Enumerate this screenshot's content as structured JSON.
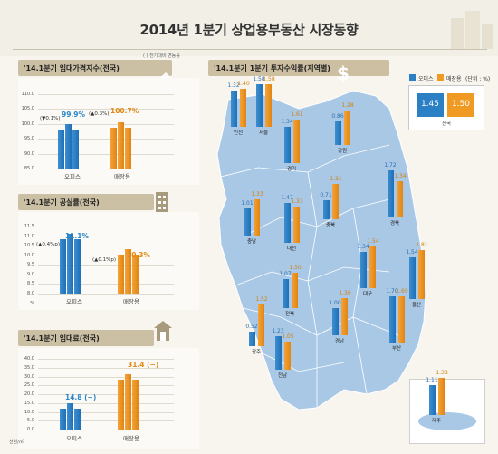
{
  "title": "2014년 1분기 상업용부동산 시장동향",
  "note": "(    ) 전기대비 변동률",
  "rent_index": {
    "heading": "'14.1분기 임대가격지수(전국)",
    "y_ticks": [
      "110.0",
      "105.0",
      "100.0",
      "95.0",
      "90.0",
      "85.0"
    ],
    "categories": [
      "오피스",
      "매장용"
    ],
    "values": [
      "99.9%",
      "100.7%"
    ],
    "changes": [
      "(▼0.1%)",
      "(▲0.3%)"
    ]
  },
  "vacancy": {
    "heading": "'14.1분기 공실률(전국)",
    "y_ticks": [
      "11.5",
      "11.0",
      "10.5",
      "10.0",
      "9.5",
      "9.0",
      "8.5",
      "8.0"
    ],
    "unit": "%",
    "categories": [
      "오피스",
      "매장용"
    ],
    "values": [
      "11.1%",
      "10.3%"
    ],
    "changes": [
      "(▲0.4%p)",
      "(▲0.1%p)"
    ]
  },
  "rent": {
    "heading": "'14.1분기 임대료(전국)",
    "y_ticks": [
      "40.0",
      "35.0",
      "30.0",
      "25.0",
      "20.0",
      "15.0",
      "10.0",
      "5.0",
      "0.0"
    ],
    "unit": "천원/㎡",
    "categories": [
      "오피스",
      "매장용"
    ],
    "values": [
      "14.8 (−)",
      "31.4 (−)"
    ]
  },
  "returns": {
    "heading": "'14.1분기 1분기 투자수익률(지역별)",
    "legend_office": "오피스",
    "legend_retail": "매장용",
    "legend_unit": "(단위 : %)",
    "national_office": "1.45",
    "national_retail": "1.50",
    "national_label": "전국",
    "colors": {
      "office": "#2b7fc4",
      "retail": "#ef9a22",
      "map": "#a9c9e6"
    }
  },
  "chart_data": [
    {
      "type": "bar",
      "title": "'14.1분기 임대가격지수(전국)",
      "categories": [
        "오피스",
        "매장용"
      ],
      "values": [
        99.9,
        100.7
      ],
      "ylim": [
        85,
        110
      ],
      "annotations": [
        "(▼0.1%)",
        "(▲0.3%)"
      ]
    },
    {
      "type": "bar",
      "title": "'14.1분기 공실률(전국)",
      "categories": [
        "오피스",
        "매장용"
      ],
      "values": [
        11.1,
        10.3
      ],
      "ylim": [
        8.0,
        11.5
      ],
      "ylabel": "%",
      "annotations": [
        "(▲0.4%p)",
        "(▲0.1%p)"
      ]
    },
    {
      "type": "bar",
      "title": "'14.1분기 임대료(전국)",
      "categories": [
        "오피스",
        "매장용"
      ],
      "values": [
        14.8,
        31.4
      ],
      "ylim": [
        0,
        40
      ],
      "ylabel": "천원/㎡"
    },
    {
      "type": "bar",
      "title": "'14.1분기 1분기 투자수익률(지역별)",
      "categories": [
        "인천",
        "서울",
        "경기",
        "강원",
        "충북",
        "충남",
        "대전",
        "경북",
        "대구",
        "울산",
        "전북",
        "광주",
        "경남",
        "부산",
        "전남",
        "제주",
        "전국"
      ],
      "series": [
        {
          "name": "오피스",
          "values": [
            1.32,
            1.58,
            1.34,
            0.86,
            0.71,
            1.01,
            1.47,
            1.72,
            1.34,
            1.54,
            1.07,
            0.52,
            1.0,
            1.7,
            1.23,
            1.11,
            1.45
          ]
        },
        {
          "name": "매장용",
          "values": [
            1.4,
            1.58,
            1.61,
            1.28,
            1.31,
            1.33,
            1.33,
            1.34,
            1.54,
            1.81,
            1.3,
            1.52,
            1.36,
            1.69,
            1.05,
            1.38,
            1.5
          ]
        }
      ]
    }
  ]
}
